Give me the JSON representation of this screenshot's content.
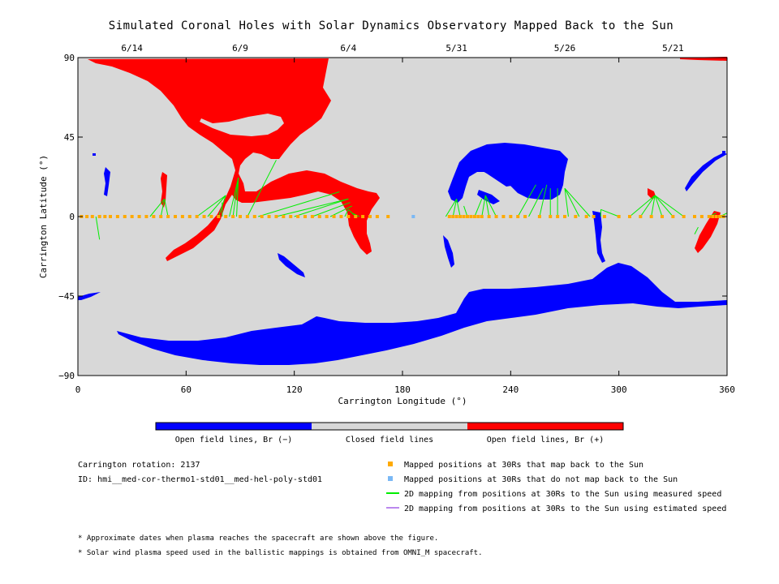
{
  "chart_data": {
    "type": "scatter",
    "title": "Simulated Coronal Holes with Solar Dynamics Observatory Mapped Back to the Sun",
    "xlabel": "Carrington Longitude (°)",
    "ylabel": "Carrington Latitude (°)",
    "xlim": [
      0,
      360
    ],
    "ylim": [
      -90,
      90
    ],
    "x_ticks": [
      "0",
      "60",
      "120",
      "180",
      "240",
      "300",
      "360"
    ],
    "y_ticks": [
      "90",
      "45",
      "0",
      "−45",
      "−90"
    ],
    "top_date_ticks": [
      {
        "label": "6/14",
        "lon": 30
      },
      {
        "label": "6/9",
        "lon": 90
      },
      {
        "label": "6/4",
        "lon": 150
      },
      {
        "label": "5/31",
        "lon": 210
      },
      {
        "label": "5/26",
        "lon": 270
      },
      {
        "label": "5/21",
        "lon": 330
      }
    ],
    "background": "#d8d8d8",
    "colors": {
      "open_negative": "#0000ff",
      "open_positive": "#ff0000",
      "closed": "#d8d8d8",
      "mapped": "#ffaa00",
      "not_mapped": "#7ab8f5",
      "measured_speed": "#00ee00",
      "estimated_speed": "#bb88ee"
    },
    "colorbar": [
      {
        "label": "Open field lines, Br (−)",
        "color": "#0000ff"
      },
      {
        "label": "Closed field lines",
        "color": "#d8d8d8"
      },
      {
        "label": "Open field lines, Br (+)",
        "color": "#ff0000"
      }
    ],
    "mapped_points_lon": [
      2,
      5,
      8,
      12,
      15,
      18,
      22,
      26,
      30,
      34,
      38,
      42,
      46,
      50,
      54,
      58,
      62,
      66,
      70,
      74,
      78,
      82,
      86,
      90,
      94,
      98,
      102,
      106,
      110,
      114,
      118,
      122,
      126,
      130,
      134,
      138,
      142,
      146,
      150,
      154,
      158,
      162,
      166,
      172,
      206,
      208,
      210,
      212,
      214,
      216,
      218,
      220,
      222,
      224,
      228,
      232,
      236,
      240,
      244,
      248,
      256,
      262,
      266,
      270,
      276,
      282,
      286,
      292,
      300,
      306,
      312,
      318,
      324,
      330,
      336,
      342,
      346,
      350,
      352,
      354,
      356,
      358
    ],
    "not_mapped_points_lon": [
      186
    ],
    "field_lines": [
      [
        10,
        0,
        12,
        -13
      ],
      [
        40,
        0,
        48,
        10
      ],
      [
        46,
        0,
        48,
        10
      ],
      [
        50,
        0,
        48,
        10
      ],
      [
        66,
        0,
        82,
        12
      ],
      [
        72,
        0,
        82,
        12
      ],
      [
        78,
        0,
        82,
        12
      ],
      [
        80,
        0,
        80,
        8
      ],
      [
        86,
        0,
        89,
        22
      ],
      [
        88,
        0,
        89,
        22
      ],
      [
        84,
        0,
        89,
        22
      ],
      [
        94,
        0,
        110,
        32
      ],
      [
        100,
        0,
        145,
        14
      ],
      [
        110,
        0,
        150,
        10
      ],
      [
        120,
        0,
        150,
        10
      ],
      [
        130,
        0,
        151,
        8
      ],
      [
        140,
        0,
        152,
        6
      ],
      [
        148,
        0,
        150,
        4
      ],
      [
        154,
        0,
        150,
        4
      ],
      [
        156,
        0,
        152,
        2
      ],
      [
        204,
        0,
        210,
        10
      ],
      [
        208,
        0,
        210,
        10
      ],
      [
        212,
        0,
        210,
        10
      ],
      [
        216,
        0,
        214,
        6
      ],
      [
        220,
        0,
        224,
        10
      ],
      [
        224,
        0,
        226,
        12
      ],
      [
        228,
        0,
        226,
        12
      ],
      [
        232,
        0,
        226,
        12
      ],
      [
        244,
        0,
        254,
        18
      ],
      [
        250,
        0,
        258,
        16
      ],
      [
        256,
        0,
        260,
        18
      ],
      [
        262,
        0,
        262,
        16
      ],
      [
        266,
        0,
        266,
        16
      ],
      [
        272,
        0,
        270,
        16
      ],
      [
        278,
        0,
        270,
        16
      ],
      [
        284,
        0,
        270,
        16
      ],
      [
        290,
        0,
        290,
        4
      ],
      [
        300,
        0,
        290,
        4
      ],
      [
        306,
        0,
        320,
        12
      ],
      [
        312,
        0,
        320,
        12
      ],
      [
        318,
        0,
        320,
        12
      ],
      [
        324,
        0,
        320,
        12
      ],
      [
        330,
        0,
        320,
        12
      ],
      [
        336,
        0,
        320,
        12
      ],
      [
        342,
        -10,
        344,
        -6
      ],
      [
        350,
        0,
        354,
        2
      ],
      [
        356,
        0,
        360,
        2
      ],
      [
        358,
        0,
        356,
        0
      ]
    ]
  },
  "legend": {
    "mapped": "Mapped positions at 30Rs that map back to the Sun",
    "not_mapped": "Mapped positions at 30Rs that do not map back to the Sun",
    "measured": "2D mapping from positions at 30Rs to the Sun using measured speed",
    "estimated": "2D mapping from positions at 30Rs to the Sun using estimated speed"
  },
  "info": {
    "rotation": "Carrington rotation: 2137",
    "id": "ID: hmi__med-cor-thermo1-std01__med-hel-poly-std01"
  },
  "notes": [
    "* Approximate dates when plasma reaches the spacecraft are shown above the figure.",
    "* Solar wind plasma speed used in the ballistic mappings is obtained from OMNI_M spacecraft."
  ]
}
